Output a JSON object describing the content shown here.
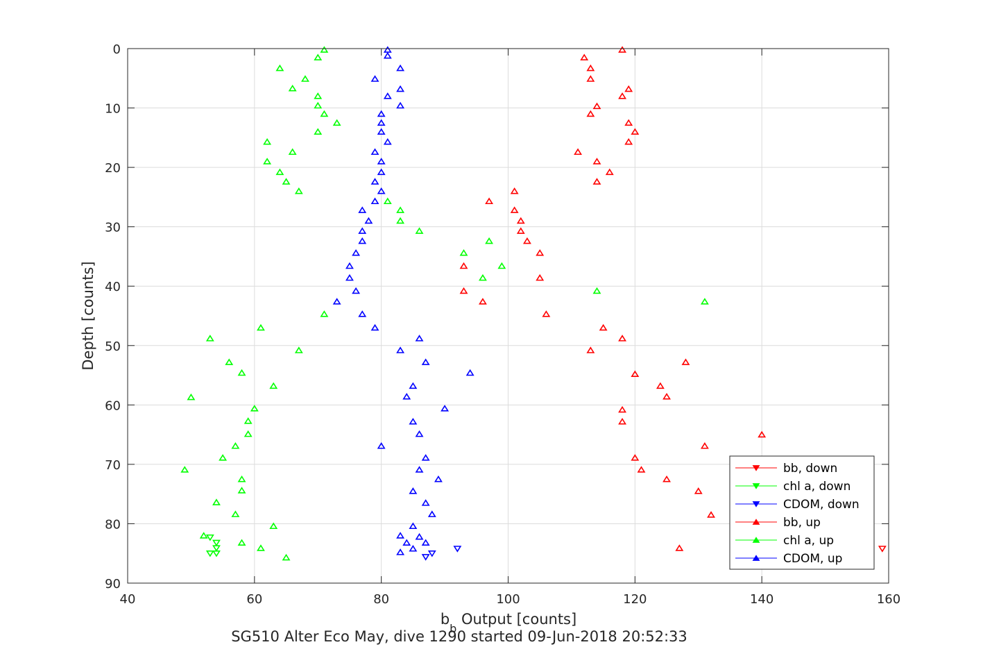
{
  "colors": {
    "bb": "#ff0000",
    "chl": "#00ff00",
    "cdom": "#0000ff",
    "grid": "#dcdcdc",
    "axis": "#262626"
  },
  "chart_data": {
    "type": "scatter",
    "xlabel_main": "b",
    "xlabel_sub": "b",
    "xlabel_rest": " Output [counts]",
    "ylabel": "Depth [counts]",
    "caption": "SG510 Alter Eco May, dive 1290 started 09-Jun-2018 20:52:33",
    "xlim": [
      40,
      160
    ],
    "ylim": [
      0,
      90
    ],
    "y_reversed": true,
    "grid": true,
    "legend_position": "bottom-right",
    "xticks": [
      "40",
      "60",
      "80",
      "100",
      "120",
      "140",
      "160"
    ],
    "yticks": [
      "0",
      "10",
      "20",
      "30",
      "40",
      "50",
      "60",
      "70",
      "80",
      "90"
    ],
    "series": [
      {
        "name": "bb, down",
        "marker": "triangle-down",
        "color": "#ff0000",
        "points": [
          [
            159,
            84.2
          ]
        ]
      },
      {
        "name": "chl a, down",
        "marker": "triangle-down",
        "color": "#00ff00",
        "points": [
          [
            53,
            82.3
          ],
          [
            54,
            83.2
          ],
          [
            54,
            84.1
          ],
          [
            53,
            85
          ],
          [
            54,
            85
          ]
        ]
      },
      {
        "name": "CDOM, down",
        "marker": "triangle-down",
        "color": "#0000ff",
        "points": [
          [
            92,
            84.2
          ],
          [
            88,
            85
          ],
          [
            87,
            85.6
          ]
        ]
      },
      {
        "name": "bb, up",
        "marker": "triangle-up",
        "color": "#ff0000",
        "points": [
          [
            118,
            0.2
          ],
          [
            112,
            1.5
          ],
          [
            113,
            3.3
          ],
          [
            113,
            5.1
          ],
          [
            119,
            6.8
          ],
          [
            118,
            8
          ],
          [
            114,
            9.7
          ],
          [
            113,
            11
          ],
          [
            119,
            12.5
          ],
          [
            120,
            14
          ],
          [
            119,
            15.7
          ],
          [
            111,
            17.4
          ],
          [
            114,
            19
          ],
          [
            116,
            20.8
          ],
          [
            114,
            22.4
          ],
          [
            101,
            24
          ],
          [
            97,
            25.7
          ],
          [
            101,
            27.2
          ],
          [
            102,
            29
          ],
          [
            102,
            30.7
          ],
          [
            103,
            32.4
          ],
          [
            105,
            34.4
          ],
          [
            93,
            36.6
          ],
          [
            105,
            38.6
          ],
          [
            93,
            40.8
          ],
          [
            96,
            42.6
          ],
          [
            106,
            44.7
          ],
          [
            115,
            47
          ],
          [
            118,
            48.8
          ],
          [
            113,
            50.8
          ],
          [
            128,
            52.8
          ],
          [
            120,
            54.8
          ],
          [
            124,
            56.8
          ],
          [
            125,
            58.6
          ],
          [
            118,
            60.8
          ],
          [
            118,
            62.8
          ],
          [
            140,
            65
          ],
          [
            131,
            66.9
          ],
          [
            120,
            68.9
          ],
          [
            121,
            70.9
          ],
          [
            125,
            72.5
          ],
          [
            130,
            74.5
          ],
          [
            132,
            78.5
          ],
          [
            127,
            84.1
          ]
        ]
      },
      {
        "name": "chl a, up",
        "marker": "triangle-up",
        "color": "#00ff00",
        "points": [
          [
            71,
            0.2
          ],
          [
            70,
            1.5
          ],
          [
            64,
            3.3
          ],
          [
            68,
            5.1
          ],
          [
            66,
            6.7
          ],
          [
            70,
            8
          ],
          [
            70,
            9.6
          ],
          [
            71,
            11
          ],
          [
            73,
            12.5
          ],
          [
            70,
            14
          ],
          [
            62,
            15.7
          ],
          [
            66,
            17.4
          ],
          [
            62,
            19
          ],
          [
            64,
            20.8
          ],
          [
            65,
            22.4
          ],
          [
            67,
            24
          ],
          [
            81,
            25.7
          ],
          [
            83,
            27.2
          ],
          [
            83,
            29
          ],
          [
            86,
            30.7
          ],
          [
            97,
            32.4
          ],
          [
            93,
            34.4
          ],
          [
            99,
            36.6
          ],
          [
            96,
            38.6
          ],
          [
            114,
            40.8
          ],
          [
            131,
            42.6
          ],
          [
            71,
            44.7
          ],
          [
            61,
            47
          ],
          [
            53,
            48.8
          ],
          [
            67,
            50.8
          ],
          [
            56,
            52.8
          ],
          [
            58,
            54.6
          ],
          [
            63,
            56.8
          ],
          [
            50,
            58.7
          ],
          [
            60,
            60.6
          ],
          [
            59,
            62.7
          ],
          [
            59,
            64.9
          ],
          [
            57,
            66.9
          ],
          [
            55,
            68.9
          ],
          [
            49,
            70.9
          ],
          [
            58,
            72.5
          ],
          [
            58,
            74.4
          ],
          [
            54,
            76.4
          ],
          [
            57,
            78.4
          ],
          [
            63,
            80.4
          ],
          [
            52,
            82
          ],
          [
            58,
            83.2
          ],
          [
            61,
            84.1
          ],
          [
            65,
            85.7
          ]
        ]
      },
      {
        "name": "CDOM, up",
        "marker": "triangle-up",
        "color": "#0000ff",
        "points": [
          [
            81,
            0.2
          ],
          [
            81,
            1.2
          ],
          [
            83,
            3.3
          ],
          [
            79,
            5.1
          ],
          [
            83,
            6.8
          ],
          [
            81,
            8
          ],
          [
            83,
            9.6
          ],
          [
            80,
            11
          ],
          [
            80,
            12.5
          ],
          [
            80,
            14
          ],
          [
            81,
            15.7
          ],
          [
            79,
            17.4
          ],
          [
            80,
            19
          ],
          [
            80,
            20.8
          ],
          [
            79,
            22.4
          ],
          [
            80,
            24
          ],
          [
            79,
            25.7
          ],
          [
            77,
            27.2
          ],
          [
            78,
            29
          ],
          [
            77,
            30.7
          ],
          [
            77,
            32.4
          ],
          [
            76,
            34.4
          ],
          [
            75,
            36.6
          ],
          [
            75,
            38.6
          ],
          [
            76,
            40.8
          ],
          [
            73,
            42.6
          ],
          [
            77,
            44.7
          ],
          [
            79,
            47
          ],
          [
            86,
            48.8
          ],
          [
            83,
            50.8
          ],
          [
            87,
            52.8
          ],
          [
            94,
            54.6
          ],
          [
            85,
            56.8
          ],
          [
            84,
            58.6
          ],
          [
            90,
            60.6
          ],
          [
            85,
            62.8
          ],
          [
            86,
            64.9
          ],
          [
            80,
            66.9
          ],
          [
            87,
            68.9
          ],
          [
            86,
            70.9
          ],
          [
            89,
            72.5
          ],
          [
            85,
            74.5
          ],
          [
            87,
            76.5
          ],
          [
            88,
            78.4
          ],
          [
            85,
            80.4
          ],
          [
            83,
            82
          ],
          [
            86,
            82.2
          ],
          [
            84,
            83.2
          ],
          [
            87,
            83.2
          ],
          [
            85,
            84.2
          ],
          [
            83,
            84.8
          ]
        ]
      }
    ]
  }
}
